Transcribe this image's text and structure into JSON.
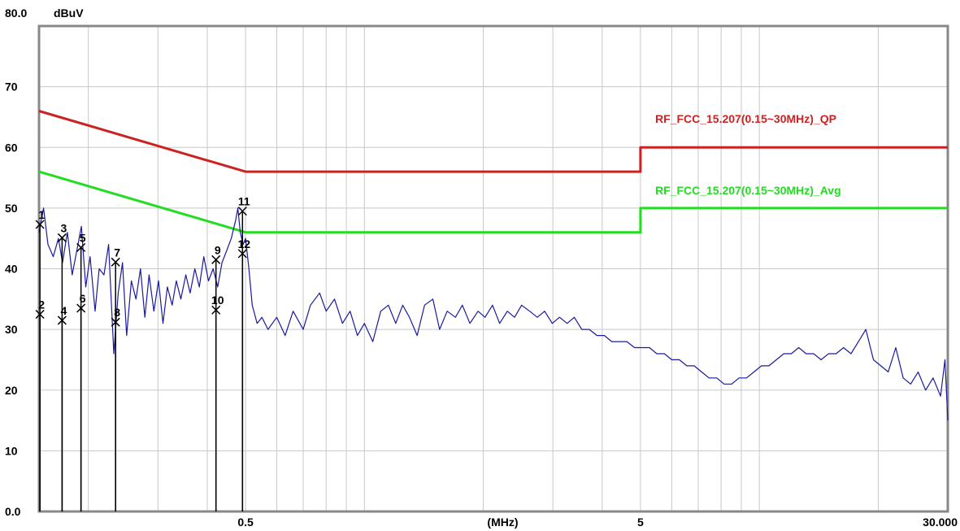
{
  "chart_data": {
    "type": "line",
    "title": "",
    "ylabel": "dBuV",
    "xlabel": "(MHz)",
    "x_scale": "log",
    "xlim": [
      0.15,
      30
    ],
    "ylim": [
      0,
      80
    ],
    "grid": true,
    "y_tick_labels": [
      "80.0",
      "70",
      "60",
      "50",
      "40",
      "30",
      "20",
      "10",
      "0.0"
    ],
    "y_ticks": [
      80,
      70,
      60,
      50,
      40,
      30,
      20,
      10,
      0
    ],
    "x_tick_labels": [
      {
        "value": 0.5,
        "label": "0.5"
      },
      {
        "value": 2.24,
        "label": "(MHz)"
      },
      {
        "value": 5,
        "label": "5"
      },
      {
        "value": 30,
        "label": "30.000"
      }
    ],
    "series": [
      {
        "name": "RF_FCC_15.207(0.15~30MHz)_QP",
        "color": "#cc2222",
        "points": [
          [
            0.15,
            66
          ],
          [
            0.5,
            56
          ],
          [
            5,
            56
          ],
          [
            5,
            60
          ],
          [
            30,
            60
          ]
        ]
      },
      {
        "name": "RF_FCC_15.207(0.15~30MHz)_Avg",
        "color": "#22dd22",
        "points": [
          [
            0.15,
            56
          ],
          [
            0.5,
            46
          ],
          [
            5,
            46
          ],
          [
            5,
            50
          ],
          [
            30,
            50
          ]
        ]
      },
      {
        "name": "",
        "color": "#1a1aa0",
        "points": [
          [
            0.15,
            46
          ],
          [
            0.154,
            50
          ],
          [
            0.158,
            44
          ],
          [
            0.163,
            42
          ],
          [
            0.168,
            45
          ],
          [
            0.172,
            41
          ],
          [
            0.177,
            46
          ],
          [
            0.182,
            39
          ],
          [
            0.187,
            43
          ],
          [
            0.192,
            47
          ],
          [
            0.197,
            37
          ],
          [
            0.202,
            42
          ],
          [
            0.208,
            33
          ],
          [
            0.213,
            40
          ],
          [
            0.219,
            39
          ],
          [
            0.225,
            44
          ],
          [
            0.232,
            26
          ],
          [
            0.238,
            36
          ],
          [
            0.244,
            41
          ],
          [
            0.25,
            29
          ],
          [
            0.257,
            38
          ],
          [
            0.264,
            35
          ],
          [
            0.271,
            40
          ],
          [
            0.278,
            32
          ],
          [
            0.285,
            39
          ],
          [
            0.293,
            33
          ],
          [
            0.301,
            38
          ],
          [
            0.309,
            31
          ],
          [
            0.317,
            37
          ],
          [
            0.326,
            34
          ],
          [
            0.334,
            38
          ],
          [
            0.343,
            35
          ],
          [
            0.353,
            39
          ],
          [
            0.362,
            36
          ],
          [
            0.372,
            40
          ],
          [
            0.382,
            37
          ],
          [
            0.392,
            42
          ],
          [
            0.403,
            38
          ],
          [
            0.414,
            40
          ],
          [
            0.425,
            37
          ],
          [
            0.436,
            41
          ],
          [
            0.448,
            43
          ],
          [
            0.46,
            45
          ],
          [
            0.472,
            48
          ],
          [
            0.478,
            50
          ],
          [
            0.485,
            46
          ],
          [
            0.493,
            44
          ],
          [
            0.5,
            45
          ],
          [
            0.51,
            40
          ],
          [
            0.52,
            34
          ],
          [
            0.535,
            31
          ],
          [
            0.55,
            32
          ],
          [
            0.57,
            30
          ],
          [
            0.6,
            32
          ],
          [
            0.63,
            29
          ],
          [
            0.66,
            33
          ],
          [
            0.7,
            30
          ],
          [
            0.73,
            34
          ],
          [
            0.77,
            36
          ],
          [
            0.8,
            33
          ],
          [
            0.84,
            35
          ],
          [
            0.88,
            31
          ],
          [
            0.92,
            33
          ],
          [
            0.96,
            29
          ],
          [
            1.0,
            31
          ],
          [
            1.05,
            28
          ],
          [
            1.1,
            33
          ],
          [
            1.15,
            34
          ],
          [
            1.2,
            31
          ],
          [
            1.25,
            34
          ],
          [
            1.3,
            32
          ],
          [
            1.36,
            29
          ],
          [
            1.42,
            34
          ],
          [
            1.49,
            35
          ],
          [
            1.55,
            30
          ],
          [
            1.62,
            33
          ],
          [
            1.7,
            32
          ],
          [
            1.77,
            34
          ],
          [
            1.85,
            31
          ],
          [
            1.94,
            33
          ],
          [
            2.02,
            32
          ],
          [
            2.11,
            34
          ],
          [
            2.2,
            31
          ],
          [
            2.3,
            33
          ],
          [
            2.4,
            32
          ],
          [
            2.5,
            34
          ],
          [
            2.62,
            33
          ],
          [
            2.74,
            32
          ],
          [
            2.86,
            33
          ],
          [
            2.99,
            31
          ],
          [
            3.12,
            32
          ],
          [
            3.26,
            31
          ],
          [
            3.4,
            32
          ],
          [
            3.55,
            30
          ],
          [
            3.71,
            30
          ],
          [
            3.88,
            29
          ],
          [
            4.05,
            29
          ],
          [
            4.23,
            28
          ],
          [
            4.42,
            28
          ],
          [
            4.62,
            28
          ],
          [
            4.83,
            27
          ],
          [
            5.04,
            27
          ],
          [
            5.27,
            27
          ],
          [
            5.5,
            26
          ],
          [
            5.75,
            26
          ],
          [
            6.0,
            25
          ],
          [
            6.27,
            25
          ],
          [
            6.55,
            24
          ],
          [
            6.84,
            24
          ],
          [
            7.14,
            23
          ],
          [
            7.46,
            22
          ],
          [
            7.8,
            22
          ],
          [
            8.14,
            21
          ],
          [
            8.51,
            21
          ],
          [
            8.88,
            22
          ],
          [
            9.28,
            22
          ],
          [
            9.69,
            23
          ],
          [
            10.12,
            24
          ],
          [
            10.57,
            24
          ],
          [
            11.04,
            25
          ],
          [
            11.53,
            26
          ],
          [
            12.04,
            26
          ],
          [
            12.58,
            27
          ],
          [
            13.14,
            26
          ],
          [
            13.72,
            26
          ],
          [
            14.33,
            25
          ],
          [
            14.97,
            26
          ],
          [
            15.64,
            26
          ],
          [
            16.33,
            27
          ],
          [
            17.06,
            26
          ],
          [
            17.82,
            28
          ],
          [
            18.61,
            30
          ],
          [
            19.44,
            25
          ],
          [
            20.3,
            24
          ],
          [
            21.2,
            23
          ],
          [
            22.15,
            27
          ],
          [
            23.13,
            22
          ],
          [
            24.16,
            21
          ],
          [
            25.24,
            23
          ],
          [
            26.36,
            20
          ],
          [
            27.53,
            22
          ],
          [
            28.76,
            19
          ],
          [
            29.5,
            25
          ],
          [
            30.0,
            15
          ]
        ]
      }
    ],
    "markers": [
      {
        "id": "1",
        "x": 0.1508,
        "y": 47.3
      },
      {
        "id": "2",
        "x": 0.1508,
        "y": 32.5
      },
      {
        "id": "3",
        "x": 0.1716,
        "y": 45.1
      },
      {
        "id": "4",
        "x": 0.1716,
        "y": 31.5
      },
      {
        "id": "5",
        "x": 0.1916,
        "y": 43.5
      },
      {
        "id": "6",
        "x": 0.1916,
        "y": 33.5
      },
      {
        "id": "7",
        "x": 0.2344,
        "y": 41.1
      },
      {
        "id": "8",
        "x": 0.2344,
        "y": 31.2
      },
      {
        "id": "9",
        "x": 0.4209,
        "y": 41.5
      },
      {
        "id": "10",
        "x": 0.4209,
        "y": 33.2
      },
      {
        "id": "11",
        "x": 0.4912,
        "y": 49.5
      },
      {
        "id": "12",
        "x": 0.4912,
        "y": 42.5
      }
    ]
  }
}
